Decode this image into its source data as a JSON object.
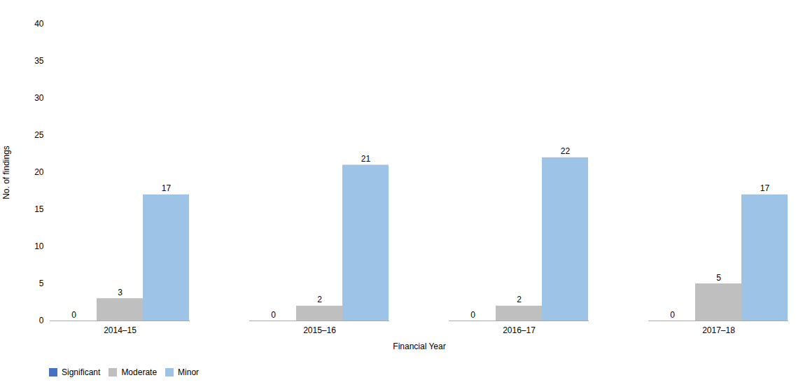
{
  "chart_data": {
    "type": "bar",
    "xlabel": "Financial Year",
    "ylabel": "No. of findings",
    "categories": [
      "2014–15",
      "2015–16",
      "2016–17",
      "2017–18"
    ],
    "series": [
      {
        "name": "Significant",
        "color": "#4472C4",
        "values": [
          0,
          0,
          0,
          0
        ]
      },
      {
        "name": "Moderate",
        "color": "#BFBFBF",
        "values": [
          3,
          2,
          2,
          5
        ]
      },
      {
        "name": "Minor",
        "color": "#9DC3E6",
        "values": [
          17,
          21,
          22,
          17
        ]
      }
    ],
    "ylim": [
      0,
      40
    ],
    "yticks": [
      0,
      5,
      10,
      15,
      20,
      25,
      30,
      35,
      40
    ],
    "grid": false,
    "data_labels": true,
    "legend": "bottom"
  }
}
